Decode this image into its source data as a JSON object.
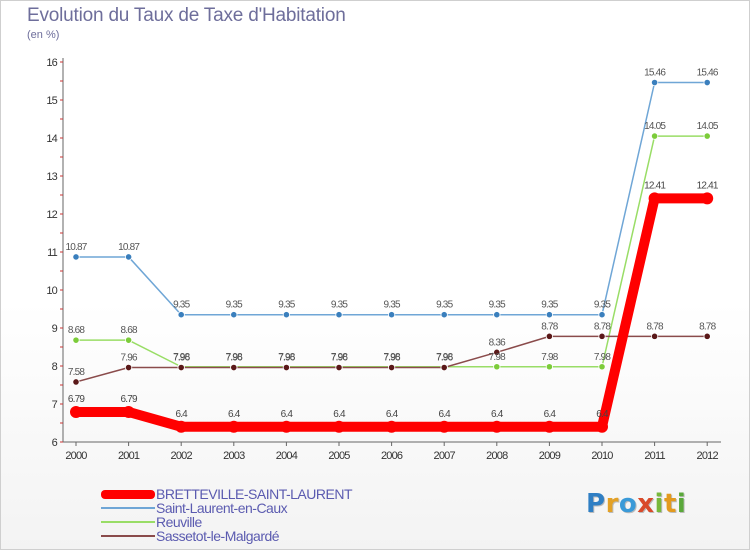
{
  "title": "Evolution du Taux de Taxe d'Habitation",
  "unit_label": "(en %)",
  "logo": {
    "text": "Proxiti",
    "letters": [
      {
        "ch": "P",
        "color": "#2f7fc4"
      },
      {
        "ch": "r",
        "color": "#e3a126"
      },
      {
        "ch": "o",
        "color": "#3a9ad8"
      },
      {
        "ch": "x",
        "color": "#d94a2a"
      },
      {
        "ch": "i",
        "color": "#78b83a"
      },
      {
        "ch": "t",
        "color": "#e39a1e"
      },
      {
        "ch": "i",
        "color": "#5aa83a"
      }
    ]
  },
  "chart_data": {
    "type": "line",
    "title": "Evolution du Taux de Taxe d'Habitation",
    "xlabel": "",
    "ylabel": "(en %)",
    "ylim": [
      6,
      16
    ],
    "yticks": [
      6,
      7,
      8,
      9,
      10,
      11,
      12,
      13,
      14,
      15,
      16
    ],
    "grid": false,
    "legend_position": "bottom-left",
    "x": [
      2000,
      2001,
      2002,
      2003,
      2004,
      2005,
      2006,
      2007,
      2008,
      2009,
      2010,
      2011,
      2012
    ],
    "series": [
      {
        "name": "BRETTEVILLE-SAINT-LAURENT",
        "color": "#ff0000",
        "highlight": true,
        "values": [
          6.79,
          6.79,
          6.4,
          6.4,
          6.4,
          6.4,
          6.4,
          6.4,
          6.4,
          6.4,
          6.4,
          12.41,
          12.41
        ],
        "labels": [
          "6.79",
          "6.79",
          "6.4",
          "6.4",
          "6.4",
          "6.4",
          "6.4",
          "6.4",
          "6.4",
          "6.4",
          "6.4",
          "12.41",
          "12.41"
        ]
      },
      {
        "name": "Saint-Laurent-en-Caux",
        "color": "#6fa6d6",
        "marker_color": "#3a7fbd",
        "values": [
          10.87,
          10.87,
          9.35,
          9.35,
          9.35,
          9.35,
          9.35,
          9.35,
          9.35,
          9.35,
          9.35,
          15.46,
          15.46
        ],
        "labels": [
          "10.87",
          "10.87",
          "9.35",
          "9.35",
          "9.35",
          "9.35",
          "9.35",
          "9.35",
          "9.35",
          "9.35",
          "9.35",
          "15.46",
          "15.46"
        ]
      },
      {
        "name": "Reuville",
        "color": "#99dd66",
        "marker_color": "#7ccc3a",
        "values": [
          8.68,
          8.68,
          7.98,
          7.98,
          7.98,
          7.98,
          7.98,
          7.98,
          7.98,
          7.98,
          7.98,
          14.05,
          14.05
        ],
        "labels": [
          "8.68",
          "8.68",
          "7.98",
          "7.98",
          "7.98",
          "7.98",
          "7.98",
          "7.98",
          "7.98",
          "7.98",
          "7.98",
          "14.05",
          "14.05"
        ]
      },
      {
        "name": "Sassetot-le-Malgardé",
        "color": "#8a4b4b",
        "marker_color": "#5a1818",
        "values": [
          7.58,
          7.96,
          7.96,
          7.96,
          7.96,
          7.96,
          7.96,
          7.96,
          8.36,
          8.78,
          8.78,
          8.78,
          8.78
        ],
        "labels": [
          "7.58",
          "7.96",
          "7.96",
          "7.96",
          "7.96",
          "7.96",
          "7.96",
          "7.96",
          "8.36",
          "8.78",
          "8.78",
          "8.78",
          "8.78"
        ]
      }
    ]
  }
}
